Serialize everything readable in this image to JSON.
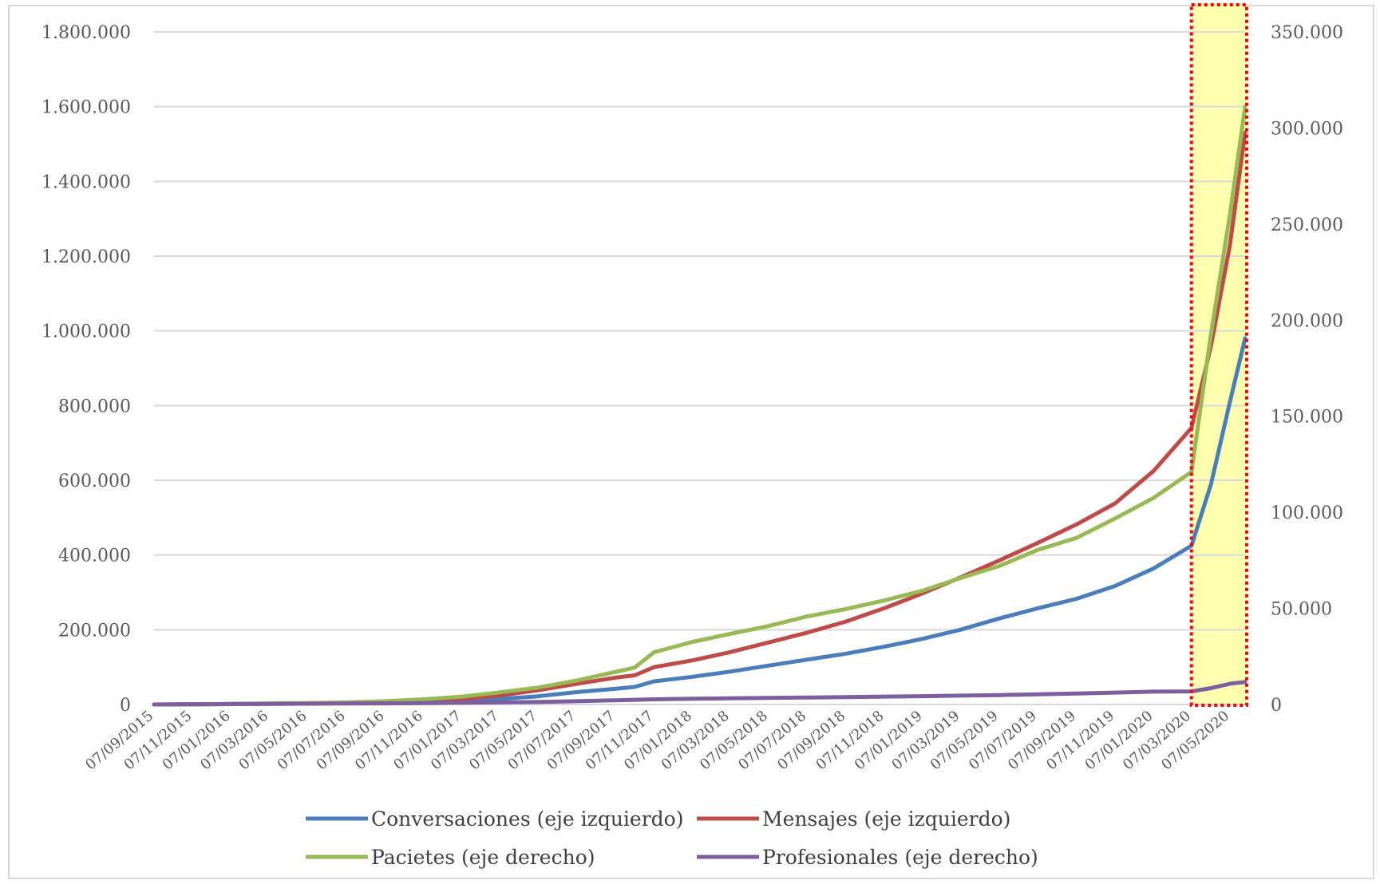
{
  "chart_data": {
    "type": "line",
    "title": "",
    "x_dates": [
      "07/09/2015",
      "07/11/2015",
      "07/01/2016",
      "07/03/2016",
      "07/05/2016",
      "07/07/2016",
      "07/09/2016",
      "07/11/2016",
      "07/01/2017",
      "07/03/2017",
      "07/05/2017",
      "07/07/2017",
      "07/09/2017",
      "07/11/2017",
      "07/01/2018",
      "07/03/2018",
      "07/05/2018",
      "07/07/2018",
      "07/09/2018",
      "07/11/2018",
      "07/01/2019",
      "07/03/2019",
      "07/05/2019",
      "07/07/2019",
      "07/09/2019",
      "07/11/2019",
      "07/01/2020",
      "07/03/2020",
      "07/05/2020"
    ],
    "x_tick_labels": [
      "07/09/2015",
      "07/11/2015",
      "07/01/2016",
      "07/03/2016",
      "07/05/2016",
      "07/07/2016",
      "07/09/2016",
      "07/11/2016",
      "07/01/2017",
      "07/03/2017",
      "07/05/2017",
      "07/07/2017",
      "07/09/2017",
      "07/11/2017",
      "07/01/2018",
      "07/03/2018",
      "07/05/2018",
      "07/07/2018",
      "07/09/2018",
      "07/11/2018",
      "07/01/2019",
      "07/03/2019",
      "07/05/2019",
      "07/07/2019",
      "07/09/2019",
      "07/11/2019",
      "07/01/2020",
      "07/03/2020",
      "07/05/2020"
    ],
    "y_left": {
      "min": 0,
      "max": 1800000,
      "tick_labels": [
        "0",
        "200.000",
        "400.000",
        "600.000",
        "800.000",
        "1.000.000",
        "1.200.000",
        "1.400.000",
        "1.600.000",
        "1.800.000"
      ]
    },
    "y_right": {
      "min": 0,
      "max": 350000,
      "tick_labels": [
        "0",
        "50.000",
        "100.000",
        "150.000",
        "200.000",
        "250.000",
        "300.000",
        "350.000"
      ]
    },
    "gridlines": "horizontal",
    "legend_position": "bottom",
    "highlight": {
      "from_date": "07/03/2020",
      "to_date": "31/05/2020",
      "fill": "#ffffb0",
      "border": "#ff0000",
      "border_style": "dotted"
    },
    "series": [
      {
        "name": "Conversaciones (eje izquierdo)",
        "axis": "left",
        "color": "#4a7ebb",
        "points": [
          [
            "07/09/2015",
            0
          ],
          [
            "07/11/2015",
            500
          ],
          [
            "07/01/2016",
            1000
          ],
          [
            "07/03/2016",
            1500
          ],
          [
            "07/05/2016",
            2500
          ],
          [
            "07/07/2016",
            3500
          ],
          [
            "07/09/2016",
            5000
          ],
          [
            "07/11/2016",
            7000
          ],
          [
            "07/01/2017",
            10000
          ],
          [
            "07/03/2017",
            15000
          ],
          [
            "07/05/2017",
            22000
          ],
          [
            "07/07/2017",
            33000
          ],
          [
            "07/09/2017",
            42000
          ],
          [
            "07/10/2017",
            47000
          ],
          [
            "07/11/2017",
            62000
          ],
          [
            "07/01/2018",
            74000
          ],
          [
            "07/03/2018",
            88000
          ],
          [
            "07/05/2018",
            104000
          ],
          [
            "07/07/2018",
            120000
          ],
          [
            "07/09/2018",
            136000
          ],
          [
            "07/11/2018",
            155000
          ],
          [
            "07/01/2019",
            176000
          ],
          [
            "07/03/2019",
            200000
          ],
          [
            "07/05/2019",
            230000
          ],
          [
            "07/07/2019",
            257000
          ],
          [
            "07/09/2019",
            283000
          ],
          [
            "07/11/2019",
            317000
          ],
          [
            "07/01/2020",
            364000
          ],
          [
            "07/03/2020",
            425000
          ],
          [
            "07/04/2020",
            590000
          ],
          [
            "07/05/2020",
            810000
          ],
          [
            "31/05/2020",
            980000
          ]
        ]
      },
      {
        "name": "Mensajes (eje izquierdo)",
        "axis": "left",
        "color": "#be4b48",
        "points": [
          [
            "07/09/2015",
            0
          ],
          [
            "07/11/2015",
            500
          ],
          [
            "07/01/2016",
            1500
          ],
          [
            "07/03/2016",
            2500
          ],
          [
            "07/05/2016",
            3500
          ],
          [
            "07/07/2016",
            5000
          ],
          [
            "07/09/2016",
            7000
          ],
          [
            "07/11/2016",
            10000
          ],
          [
            "07/01/2017",
            15000
          ],
          [
            "07/03/2017",
            24000
          ],
          [
            "07/05/2017",
            38000
          ],
          [
            "07/07/2017",
            55000
          ],
          [
            "07/09/2017",
            72000
          ],
          [
            "07/10/2017",
            78000
          ],
          [
            "07/11/2017",
            100000
          ],
          [
            "07/01/2018",
            118000
          ],
          [
            "07/03/2018",
            140000
          ],
          [
            "07/05/2018",
            166000
          ],
          [
            "07/07/2018",
            192000
          ],
          [
            "07/09/2018",
            222000
          ],
          [
            "07/11/2018",
            258000
          ],
          [
            "07/01/2019",
            298000
          ],
          [
            "07/03/2019",
            340000
          ],
          [
            "07/05/2019",
            385000
          ],
          [
            "07/07/2019",
            432000
          ],
          [
            "07/09/2019",
            482000
          ],
          [
            "07/11/2019",
            538000
          ],
          [
            "07/01/2020",
            625000
          ],
          [
            "07/03/2020",
            740000
          ],
          [
            "07/04/2020",
            960000
          ],
          [
            "07/05/2020",
            1230000
          ],
          [
            "31/05/2020",
            1530000
          ]
        ]
      },
      {
        "name": "Pacietes (eje derecho)",
        "axis": "right",
        "color": "#98b954",
        "points": [
          [
            "07/09/2015",
            0
          ],
          [
            "07/11/2015",
            100
          ],
          [
            "07/01/2016",
            250
          ],
          [
            "07/03/2016",
            400
          ],
          [
            "07/05/2016",
            700
          ],
          [
            "07/07/2016",
            1100
          ],
          [
            "07/09/2016",
            1700
          ],
          [
            "07/11/2016",
            2700
          ],
          [
            "07/01/2017",
            4100
          ],
          [
            "07/03/2017",
            6300
          ],
          [
            "07/05/2017",
            8800
          ],
          [
            "07/07/2017",
            12400
          ],
          [
            "07/09/2017",
            17000
          ],
          [
            "07/10/2017",
            19200
          ],
          [
            "07/11/2017",
            27200
          ],
          [
            "07/01/2018",
            32600
          ],
          [
            "07/03/2018",
            36700
          ],
          [
            "07/05/2018",
            40800
          ],
          [
            "07/07/2018",
            45800
          ],
          [
            "07/09/2018",
            49700
          ],
          [
            "07/11/2018",
            54200
          ],
          [
            "07/01/2019",
            59300
          ],
          [
            "07/03/2019",
            65800
          ],
          [
            "07/05/2019",
            72000
          ],
          [
            "07/07/2019",
            80400
          ],
          [
            "07/09/2019",
            86700
          ],
          [
            "07/11/2019",
            96800
          ],
          [
            "07/01/2020",
            107500
          ],
          [
            "07/03/2020",
            121000
          ],
          [
            "07/04/2020",
            193000
          ],
          [
            "07/05/2020",
            255000
          ],
          [
            "31/05/2020",
            311000
          ]
        ]
      },
      {
        "name": "Profesionales (eje derecho)",
        "axis": "right",
        "color": "#7d5fa0",
        "points": [
          [
            "07/09/2015",
            0
          ],
          [
            "07/11/2015",
            100
          ],
          [
            "07/01/2016",
            200
          ],
          [
            "07/03/2016",
            300
          ],
          [
            "07/05/2016",
            400
          ],
          [
            "07/07/2016",
            500
          ],
          [
            "07/09/2016",
            600
          ],
          [
            "07/11/2016",
            700
          ],
          [
            "07/01/2017",
            900
          ],
          [
            "07/03/2017",
            1100
          ],
          [
            "07/05/2017",
            1300
          ],
          [
            "07/07/2017",
            1700
          ],
          [
            "07/09/2017",
            2200
          ],
          [
            "07/11/2017",
            2700
          ],
          [
            "07/01/2018",
            3000
          ],
          [
            "07/03/2018",
            3200
          ],
          [
            "07/05/2018",
            3400
          ],
          [
            "07/07/2018",
            3600
          ],
          [
            "07/09/2018",
            3800
          ],
          [
            "07/11/2018",
            4100
          ],
          [
            "07/01/2019",
            4300
          ],
          [
            "07/03/2019",
            4600
          ],
          [
            "07/05/2019",
            4900
          ],
          [
            "07/07/2019",
            5300
          ],
          [
            "07/09/2019",
            5700
          ],
          [
            "07/11/2019",
            6200
          ],
          [
            "07/01/2020",
            6700
          ],
          [
            "07/03/2020",
            6800
          ],
          [
            "07/04/2020",
            8500
          ],
          [
            "07/05/2020",
            10800
          ],
          [
            "31/05/2020",
            11700
          ]
        ]
      }
    ],
    "legend": [
      {
        "label": "Conversaciones (eje izquierdo)",
        "color": "#4a7ebb"
      },
      {
        "label": "Mensajes (eje izquierdo)",
        "color": "#be4b48"
      },
      {
        "label": "Pacietes (eje derecho)",
        "color": "#98b954"
      },
      {
        "label": "Profesionales (eje derecho)",
        "color": "#7d5fa0"
      }
    ]
  }
}
